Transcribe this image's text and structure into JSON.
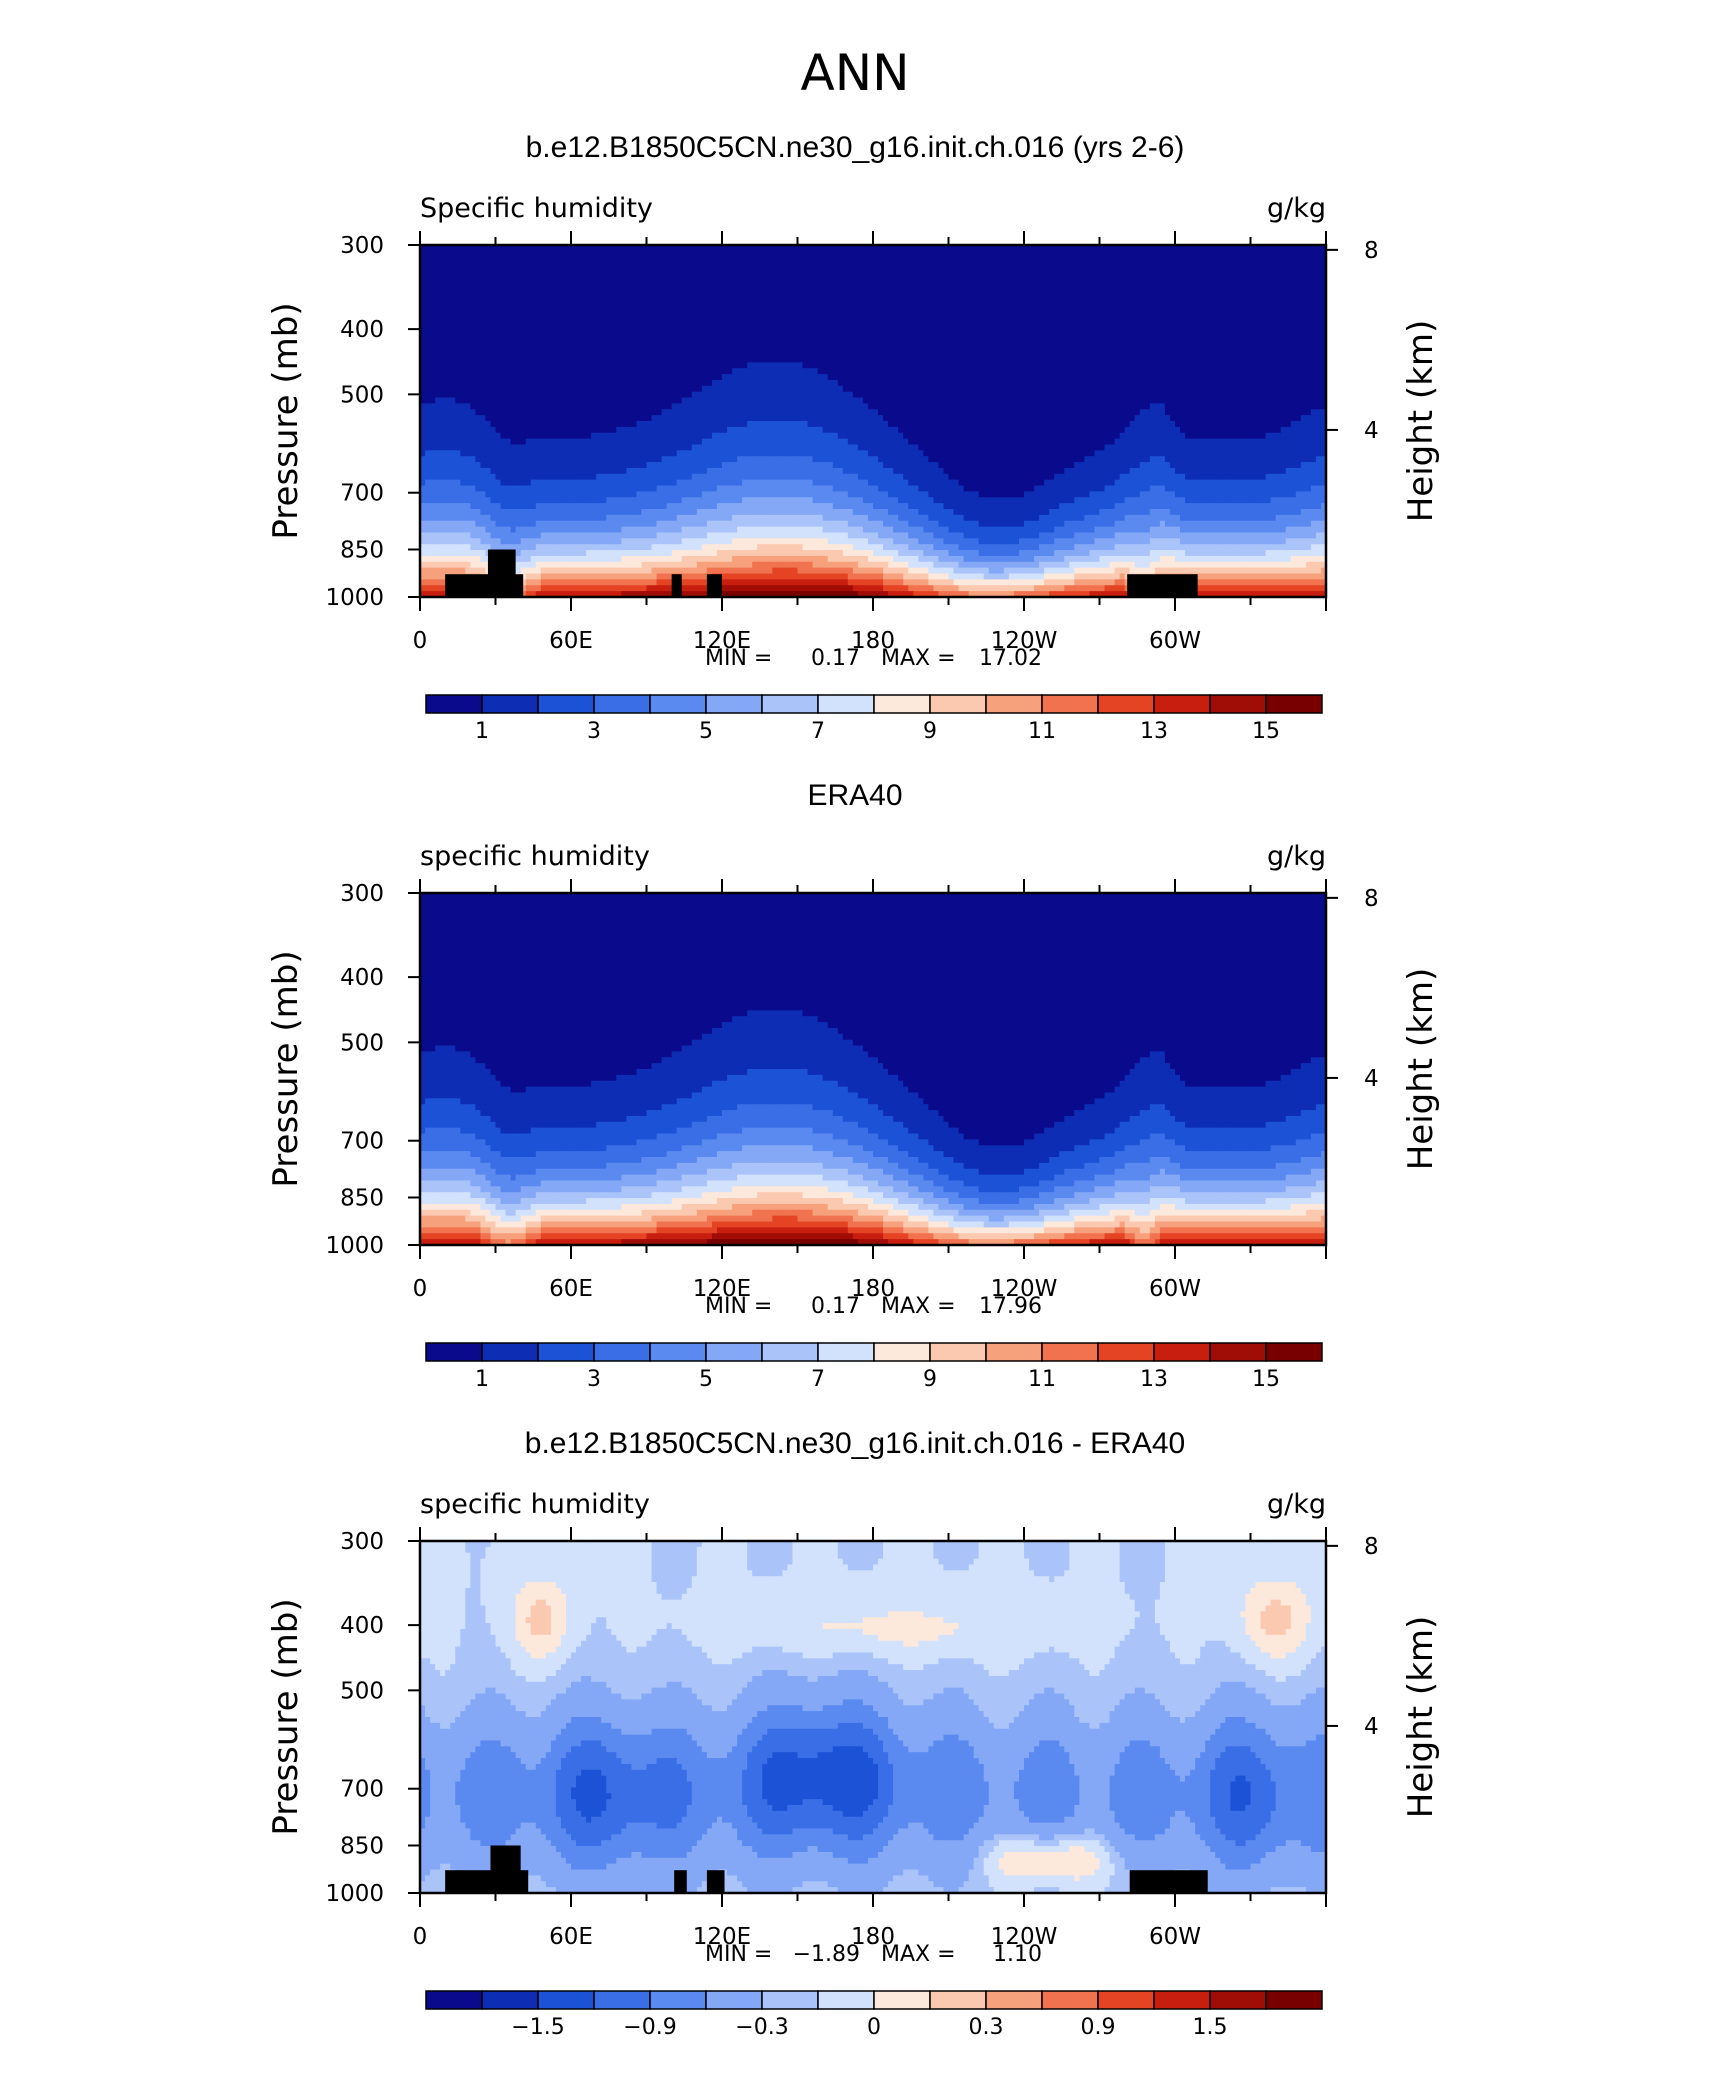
{
  "page": {
    "title": "ANN"
  },
  "colors": {
    "scale": [
      "#0a0a8c",
      "#0d2db4",
      "#1c52d6",
      "#3a6ee6",
      "#5a8af0",
      "#84a8f6",
      "#aac4fa",
      "#d2e2fc",
      "#fde8dc",
      "#fbc8b0",
      "#f7a07c",
      "#f0724e",
      "#e44424",
      "#c81e10",
      "#a00c06",
      "#780000"
    ],
    "land": "#000000"
  },
  "chart_data": [
    {
      "type": "contour",
      "panel_title": "b.e12.B1850C5CN.ne30_g16.init.ch.016 (yrs 2-6)",
      "left_label": "Specific humidity",
      "right_label": "g/kg",
      "ylabel": "Pressure (mb)",
      "ylabel_right": "Height (km)",
      "x_ticks": [
        "0",
        "60E",
        "120E",
        "180",
        "120W",
        "60W"
      ],
      "x_tick_lon": [
        0,
        60,
        120,
        180,
        240,
        300
      ],
      "xlim": [
        0,
        360
      ],
      "y_ticks": [
        "300",
        "400",
        "500",
        "700",
        "850",
        "1000"
      ],
      "y_tick_p": [
        300,
        400,
        500,
        700,
        850,
        1000
      ],
      "ylim": [
        300,
        1000
      ],
      "right_ticks": [
        "8",
        "4"
      ],
      "right_tick_km": [
        8,
        4
      ],
      "min_label": "MIN =",
      "min_value": "0.17",
      "max_label": "MAX =",
      "max_value": "17.02",
      "colorbar_labels": [
        "1",
        "3",
        "5",
        "7",
        "9",
        "11",
        "13",
        "15"
      ],
      "colorbar_levels": [
        0,
        1,
        2,
        3,
        4,
        5,
        6,
        7,
        8,
        9,
        10,
        11,
        12,
        13,
        14,
        15,
        16
      ],
      "field": "abs",
      "land_blocks": [
        {
          "lon0": 10,
          "lon1": 41,
          "p_top": 925
        },
        {
          "lon0": 27,
          "lon1": 38,
          "p_top": 850
        },
        {
          "lon0": 100,
          "lon1": 104,
          "p_top": 925
        },
        {
          "lon0": 114,
          "lon1": 120,
          "p_top": 925
        },
        {
          "lon0": 281,
          "lon1": 309,
          "p_top": 925
        }
      ]
    },
    {
      "type": "contour",
      "panel_title": "ERA40",
      "left_label": "specific humidity",
      "right_label": "g/kg",
      "ylabel": "Pressure (mb)",
      "ylabel_right": "Height (km)",
      "x_ticks": [
        "0",
        "60E",
        "120E",
        "180",
        "120W",
        "60W"
      ],
      "x_tick_lon": [
        0,
        60,
        120,
        180,
        240,
        300
      ],
      "xlim": [
        0,
        360
      ],
      "y_ticks": [
        "300",
        "400",
        "500",
        "700",
        "850",
        "1000"
      ],
      "y_tick_p": [
        300,
        400,
        500,
        700,
        850,
        1000
      ],
      "ylim": [
        300,
        1000
      ],
      "right_ticks": [
        "8",
        "4"
      ],
      "right_tick_km": [
        8,
        4
      ],
      "min_label": "MIN =",
      "min_value": "0.17",
      "max_label": "MAX =",
      "max_value": "17.96",
      "colorbar_labels": [
        "1",
        "3",
        "5",
        "7",
        "9",
        "11",
        "13",
        "15"
      ],
      "colorbar_levels": [
        0,
        1,
        2,
        3,
        4,
        5,
        6,
        7,
        8,
        9,
        10,
        11,
        12,
        13,
        14,
        15,
        16
      ],
      "field": "abs",
      "land_blocks": []
    },
    {
      "type": "contour",
      "panel_title": "b.e12.B1850C5CN.ne30_g16.init.ch.016 - ERA40",
      "left_label": "specific humidity",
      "right_label": "g/kg",
      "ylabel": "Pressure (mb)",
      "ylabel_right": "Height (km)",
      "x_ticks": [
        "0",
        "60E",
        "120E",
        "180",
        "120W",
        "60W"
      ],
      "x_tick_lon": [
        0,
        60,
        120,
        180,
        240,
        300
      ],
      "xlim": [
        0,
        360
      ],
      "y_ticks": [
        "300",
        "400",
        "500",
        "700",
        "850",
        "1000"
      ],
      "y_tick_p": [
        300,
        400,
        500,
        700,
        850,
        1000
      ],
      "ylim": [
        300,
        1000
      ],
      "right_ticks": [
        "8",
        "4"
      ],
      "right_tick_km": [
        8,
        4
      ],
      "min_label": "MIN =",
      "min_value": "−1.89",
      "max_label": "MAX =",
      "max_value": "1.10",
      "colorbar_labels": [
        "−1.5",
        "−0.9",
        "−0.3",
        "0",
        "0.3",
        "0.9",
        "1.5"
      ],
      "colorbar_levels": [
        -2.1,
        -1.8,
        -1.5,
        -1.2,
        -0.9,
        -0.6,
        -0.3,
        -0.15,
        0,
        0.15,
        0.3,
        0.6,
        0.9,
        1.2,
        1.5,
        1.8,
        2.1
      ],
      "field": "diff",
      "land_blocks": [
        {
          "lon0": 10,
          "lon1": 43,
          "p_top": 925
        },
        {
          "lon0": 28,
          "lon1": 40,
          "p_top": 850
        },
        {
          "lon0": 101,
          "lon1": 106,
          "p_top": 925
        },
        {
          "lon0": 114,
          "lon1": 121,
          "p_top": 925
        },
        {
          "lon0": 282,
          "lon1": 313,
          "p_top": 925
        }
      ]
    }
  ]
}
